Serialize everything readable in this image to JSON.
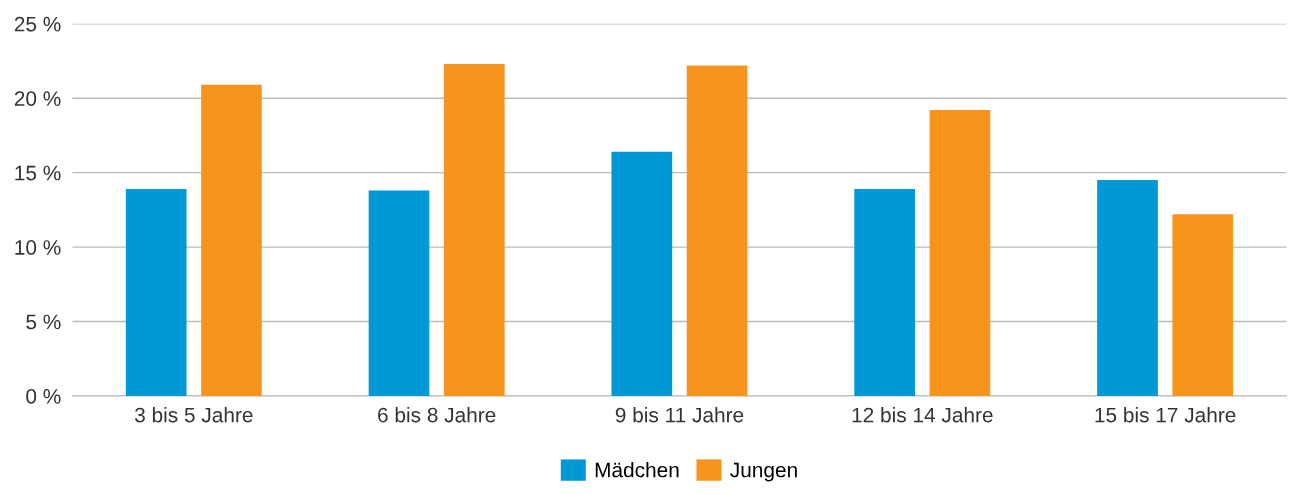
{
  "chart_data": {
    "type": "bar",
    "categories": [
      "3 bis 5 Jahre",
      "6 bis 8 Jahre",
      "9 bis 11 Jahre",
      "12 bis 14 Jahre",
      "15 bis 17 Jahre"
    ],
    "series": [
      {
        "name": "Mädchen",
        "color": "#0099d6",
        "values": [
          13.9,
          13.8,
          16.4,
          13.9,
          14.5
        ]
      },
      {
        "name": "Jungen",
        "color": "#f7941d",
        "values": [
          20.9,
          22.3,
          22.2,
          19.2,
          12.2
        ]
      }
    ],
    "ylim": [
      0,
      25
    ],
    "yticks": [
      {
        "value": 0,
        "label": "0 %"
      },
      {
        "value": 5,
        "label": "5 %"
      },
      {
        "value": 10,
        "label": "10 %"
      },
      {
        "value": 15,
        "label": "15 %"
      },
      {
        "value": 20,
        "label": "20 %"
      },
      {
        "value": 25,
        "label": "25 %"
      }
    ],
    "grid": "y",
    "legend": "bottom"
  }
}
